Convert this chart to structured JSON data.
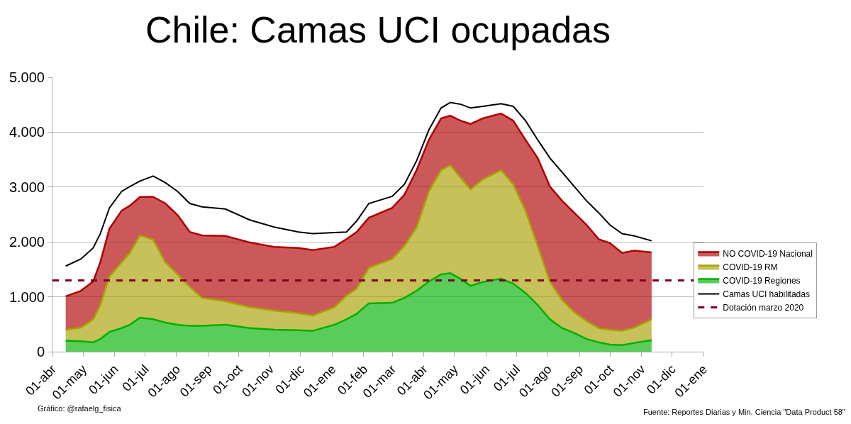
{
  "chart_data": {
    "type": "area",
    "title": "Chile: Camas UCI ocupadas",
    "stacked": true,
    "grid": "y",
    "legend": "right",
    "x": [
      "2020-04-14",
      "2020-04-29",
      "2020-05-11",
      "2020-05-18",
      "2020-05-27",
      "2020-06-08",
      "2020-06-16",
      "2020-06-26",
      "2020-07-09",
      "2020-07-21",
      "2020-08-02",
      "2020-08-14",
      "2020-08-26",
      "2020-09-18",
      "2020-10-12",
      "2020-11-05",
      "2020-11-29",
      "2020-12-13",
      "2021-01-03",
      "2021-01-15",
      "2021-01-25",
      "2021-02-06",
      "2021-03-01",
      "2021-03-13",
      "2021-03-25",
      "2021-04-06",
      "2021-04-18",
      "2021-04-27",
      "2021-05-07",
      "2021-05-17",
      "2021-05-29",
      "2021-06-16",
      "2021-06-28",
      "2021-07-10",
      "2021-07-22",
      "2021-08-03",
      "2021-08-15",
      "2021-08-27",
      "2021-09-08",
      "2021-09-20",
      "2021-10-01",
      "2021-10-13",
      "2021-10-25",
      "2021-11-11"
    ],
    "series": [
      {
        "name": "COVID-19 Regiones",
        "color": "#00b000",
        "values": [
          200,
          190,
          170,
          230,
          360,
          430,
          490,
          620,
          590,
          530,
          490,
          470,
          470,
          490,
          430,
          400,
          390,
          380,
          490,
          590,
          690,
          880,
          890,
          980,
          1110,
          1280,
          1410,
          1430,
          1330,
          1200,
          1270,
          1330,
          1240,
          1070,
          850,
          590,
          430,
          340,
          230,
          170,
          130,
          120,
          160,
          210
        ]
      },
      {
        "name": "COVID-19 RM",
        "color": "#a8a000",
        "values": [
          200,
          250,
          420,
          620,
          1010,
          1200,
          1310,
          1500,
          1450,
          1100,
          920,
          710,
          510,
          430,
          380,
          350,
          310,
          280,
          320,
          430,
          460,
          650,
          800,
          950,
          1160,
          1640,
          1900,
          1970,
          1850,
          1760,
          1870,
          1980,
          1810,
          1500,
          1080,
          690,
          510,
          380,
          330,
          260,
          270,
          260,
          280,
          380
        ]
      },
      {
        "name": "NO COVID-19 Nacional",
        "color": "#b00000",
        "values": [
          610,
          670,
          690,
          780,
          870,
          940,
          860,
          700,
          780,
          1070,
          1080,
          1000,
          1140,
          1190,
          1180,
          1160,
          1190,
          1190,
          1100,
          1030,
          1030,
          910,
          930,
          930,
          1040,
          940,
          940,
          900,
          1030,
          1190,
          1110,
          1030,
          1160,
          1290,
          1600,
          1730,
          1810,
          1810,
          1750,
          1620,
          1580,
          1420,
          1400,
          1220
        ]
      },
      {
        "name": "Camas UCI habilitadas",
        "type": "line",
        "color": "#000000",
        "values": [
          1560,
          1690,
          1890,
          2150,
          2620,
          2920,
          3010,
          3110,
          3200,
          3080,
          2920,
          2700,
          2640,
          2600,
          2400,
          2270,
          2180,
          2150,
          2170,
          2180,
          2380,
          2700,
          2830,
          3050,
          3480,
          4040,
          4440,
          4540,
          4510,
          4440,
          4470,
          4520,
          4470,
          4210,
          3860,
          3530,
          3270,
          3010,
          2750,
          2530,
          2310,
          2150,
          2110,
          2020
        ]
      }
    ],
    "ref_lines": [
      {
        "axis": "y",
        "value": 1300,
        "label": "Dotación marzo 2020",
        "color": "#800020",
        "line_style": "dashed"
      }
    ],
    "ylim": [
      0,
      5000
    ],
    "yticks": [
      0,
      {
        "value": 1000,
        "label": "1.000"
      },
      {
        "value": 2000,
        "label": "2.000"
      },
      {
        "value": 3000,
        "label": "3.000"
      },
      {
        "value": 4000,
        "label": "4.000"
      },
      {
        "value": 5000,
        "label": "5.000"
      }
    ],
    "xlim": [
      "2020-04-01",
      "2022-01-01"
    ],
    "xticks": [
      {
        "value": "2020-04-01",
        "label": "01-abr"
      },
      {
        "value": "2020-05-01",
        "label": "01-may"
      },
      {
        "value": "2020-06-01",
        "label": "01-jun"
      },
      {
        "value": "2020-07-01",
        "label": "01-jul"
      },
      {
        "value": "2020-08-01",
        "label": "01-ago"
      },
      {
        "value": "2020-09-01",
        "label": "01-sep"
      },
      {
        "value": "2020-10-01",
        "label": "01-oct"
      },
      {
        "value": "2020-11-01",
        "label": "01-nov"
      },
      {
        "value": "2020-12-01",
        "label": "01-dic"
      },
      {
        "value": "2021-01-01",
        "label": "01-ene"
      },
      {
        "value": "2021-02-01",
        "label": "01-feb"
      },
      {
        "value": "2021-03-01",
        "label": "01-mar"
      },
      {
        "value": "2021-04-01",
        "label": "01-abr"
      },
      {
        "value": "2021-05-01",
        "label": "01-may"
      },
      {
        "value": "2021-06-01",
        "label": "01-jun"
      },
      {
        "value": "2021-07-01",
        "label": "01-jul"
      },
      {
        "value": "2021-08-01",
        "label": "01-ago"
      },
      {
        "value": "2021-09-01",
        "label": "01-sep"
      },
      {
        "value": "2021-10-01",
        "label": "01-oct"
      },
      {
        "value": "2021-11-01",
        "label": "01-nov"
      },
      {
        "value": "2021-12-01",
        "label": "01-dic"
      },
      {
        "value": "2022-01-01",
        "label": "01-ene"
      }
    ],
    "annotations": [
      "Gráfico: @rafaelg_fisica",
      "Fuente: Reportes Diarias y Min. Ciencia \"Data Product 58\""
    ]
  }
}
